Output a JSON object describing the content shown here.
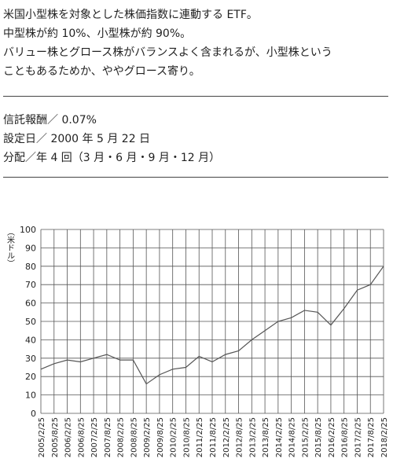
{
  "description": [
    "米国小型株を対象とした株価指数に連動する ETF。",
    "中型株が約 10%、小型株が約 90%。",
    "バリュー株とグロース株がバランスよく含まれるが、小型株という",
    "こともあるためか、ややグロース寄り。"
  ],
  "details": [
    "信託報酬／ 0.07%",
    "設定日／ 2000 年 5 月 22 日",
    "分配／年 4 回（3 月・6 月・9 月・12 月）"
  ],
  "chart_data": {
    "type": "line",
    "y_label": "（米ドル）",
    "categories": [
      "2005/2/25",
      "2005/8/25",
      "2006/2/25",
      "2006/8/25",
      "2007/2/25",
      "2007/8/25",
      "2008/2/25",
      "2008/8/25",
      "2009/2/25",
      "2009/8/25",
      "2010/2/25",
      "2010/8/25",
      "2011/2/25",
      "2011/8/25",
      "2012/2/25",
      "2012/8/25",
      "2013/2/25",
      "2013/8/25",
      "2014/2/25",
      "2014/8/25",
      "2015/2/25",
      "2015/8/25",
      "2016/2/25",
      "2016/8/25",
      "2017/2/25",
      "2017/8/25",
      "2018/2/25"
    ],
    "values": [
      24,
      27,
      29,
      28,
      30,
      32,
      29,
      29,
      16,
      21,
      24,
      25,
      31,
      28,
      32,
      34,
      40,
      45,
      50,
      52,
      56,
      55,
      48,
      57,
      67,
      70,
      80
    ],
    "color": "#555555",
    "ylim": [
      0,
      100
    ],
    "yticks": [
      0,
      10,
      20,
      30,
      40,
      50,
      60,
      70,
      80,
      90,
      100
    ],
    "grid": true
  }
}
